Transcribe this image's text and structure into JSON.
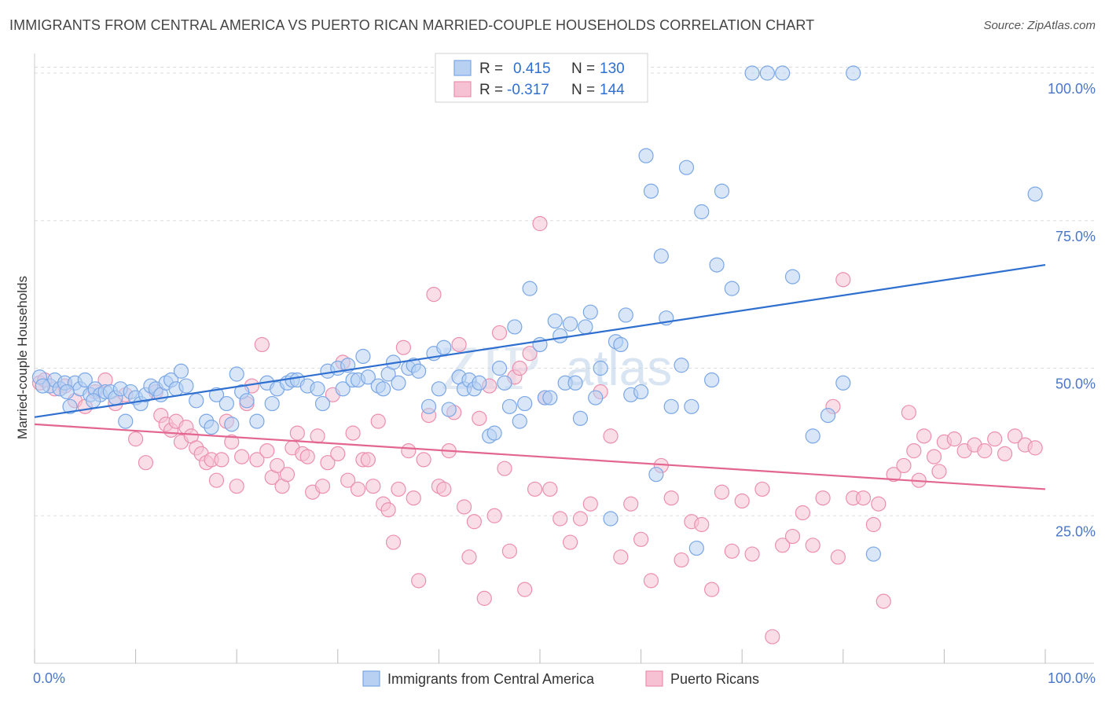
{
  "header": {
    "title": "IMMIGRANTS FROM CENTRAL AMERICA VS PUERTO RICAN MARRIED-COUPLE HOUSEHOLDS CORRELATION CHART",
    "source": "Source: ZipAtlas.com"
  },
  "watermark": {
    "zip": "ZIP",
    "atlas": "atlas"
  },
  "colors": {
    "blue_fill": "#b8d1f3",
    "blue_stroke": "#7aa7e6",
    "blue_line": "#2f6fd0",
    "pink_fill": "#f6c2d3",
    "pink_stroke": "#ec8fae",
    "pink_line": "#e2668f",
    "grid": "#dddddd",
    "tick_text": "#4a77c8"
  },
  "legend": {
    "rows": [
      {
        "r_label": "R =",
        "r_value": "0.415",
        "n_label": "N =",
        "n_value": "130"
      },
      {
        "r_label": "R =",
        "r_value": "-0.317",
        "n_label": "N =",
        "n_value": "144"
      }
    ]
  },
  "chart_data": {
    "type": "scatter",
    "title": "IMMIGRANTS FROM CENTRAL AMERICA VS PUERTO RICAN MARRIED-COUPLE HOUSEHOLDS CORRELATION CHART",
    "xlabel": "",
    "ylabel": "Married-couple Households",
    "xlim": [
      0,
      100
    ],
    "ylim": [
      0,
      102
    ],
    "x_tick_labels": [
      "0.0%",
      "100.0%"
    ],
    "y_ticks": [
      25,
      50,
      75,
      100
    ],
    "y_tick_labels": [
      "25.0%",
      "50.0%",
      "75.0%",
      "100.0%"
    ],
    "legend_position": "top-center",
    "series": [
      {
        "name": "Immigrants from Central America",
        "color": "#7aa7e6",
        "R": 0.415,
        "N": 130,
        "trend": {
          "x0": 0,
          "y0": 41.7,
          "x1": 100,
          "y1": 67.5
        },
        "points": [
          [
            0.5,
            48.5
          ],
          [
            1.5,
            47
          ],
          [
            2,
            48
          ],
          [
            2.5,
            46.5
          ],
          [
            3,
            47.5
          ],
          [
            3.5,
            43.5
          ],
          [
            4,
            47.5
          ],
          [
            4.5,
            46.5
          ],
          [
            5,
            48
          ],
          [
            5.5,
            45.5
          ],
          [
            6,
            46.5
          ],
          [
            6.5,
            45.5
          ],
          [
            7,
            46
          ],
          [
            7.5,
            46
          ],
          [
            8,
            45
          ],
          [
            8.5,
            46.5
          ],
          [
            9,
            41
          ],
          [
            9.5,
            46
          ],
          [
            10,
            45
          ],
          [
            10.5,
            44
          ],
          [
            11,
            45.5
          ],
          [
            11.5,
            47
          ],
          [
            12,
            46.5
          ],
          [
            12.5,
            45.5
          ],
          [
            13,
            47.5
          ],
          [
            13.5,
            48
          ],
          [
            14,
            46.5
          ],
          [
            14.5,
            49.5
          ],
          [
            15,
            47
          ],
          [
            16,
            44.5
          ],
          [
            17,
            41
          ],
          [
            17.5,
            40
          ],
          [
            18,
            45.5
          ],
          [
            19,
            44
          ],
          [
            19.5,
            40.5
          ],
          [
            20,
            49
          ],
          [
            20.5,
            46
          ],
          [
            21,
            44.5
          ],
          [
            22,
            41
          ],
          [
            23,
            47.5
          ],
          [
            23.5,
            44
          ],
          [
            24,
            46.5
          ],
          [
            25,
            47.5
          ],
          [
            25.5,
            48
          ],
          [
            26,
            48
          ],
          [
            27,
            47
          ],
          [
            28,
            46.5
          ],
          [
            28.5,
            44
          ],
          [
            29,
            49.5
          ],
          [
            30,
            50
          ],
          [
            30.5,
            46.5
          ],
          [
            31,
            50.5
          ],
          [
            31.5,
            48
          ],
          [
            32,
            48
          ],
          [
            32.5,
            52
          ],
          [
            33,
            48.5
          ],
          [
            34,
            47
          ],
          [
            34.5,
            46.5
          ],
          [
            35,
            49
          ],
          [
            35.5,
            51
          ],
          [
            36,
            47.5
          ],
          [
            37,
            50
          ],
          [
            37.5,
            50.5
          ],
          [
            38,
            49.5
          ],
          [
            39,
            43.5
          ],
          [
            39.5,
            52.5
          ],
          [
            40,
            46.5
          ],
          [
            40.5,
            53.5
          ],
          [
            41,
            43
          ],
          [
            42,
            48.5
          ],
          [
            42.5,
            46.5
          ],
          [
            43,
            48
          ],
          [
            43.5,
            46.5
          ],
          [
            44,
            47.5
          ],
          [
            45,
            38.5
          ],
          [
            45.5,
            39
          ],
          [
            46,
            50
          ],
          [
            46.5,
            47.5
          ],
          [
            47,
            43.5
          ],
          [
            47.5,
            57
          ],
          [
            48,
            41
          ],
          [
            48.5,
            44
          ],
          [
            49,
            63.5
          ],
          [
            50,
            54
          ],
          [
            50.5,
            45
          ],
          [
            51,
            45
          ],
          [
            51.5,
            58
          ],
          [
            52,
            55.5
          ],
          [
            52.5,
            47.5
          ],
          [
            53,
            57.5
          ],
          [
            53.5,
            47.5
          ],
          [
            54,
            41.5
          ],
          [
            54.5,
            57
          ],
          [
            55,
            59.5
          ],
          [
            55.5,
            45
          ],
          [
            56,
            50
          ],
          [
            57,
            24.5
          ],
          [
            57.5,
            54.5
          ],
          [
            58,
            54
          ],
          [
            58.5,
            59
          ],
          [
            59,
            45.5
          ],
          [
            60,
            46
          ],
          [
            60.5,
            86
          ],
          [
            61,
            80
          ],
          [
            61.5,
            32
          ],
          [
            62,
            69
          ],
          [
            62.5,
            58.5
          ],
          [
            63,
            43.5
          ],
          [
            64,
            50.5
          ],
          [
            64.5,
            84
          ],
          [
            65,
            43.5
          ],
          [
            65.5,
            19.5
          ],
          [
            66,
            76.5
          ],
          [
            67,
            48
          ],
          [
            67.5,
            67.5
          ],
          [
            68,
            80
          ],
          [
            69,
            63.5
          ],
          [
            71,
            100
          ],
          [
            72.5,
            100
          ],
          [
            74,
            100
          ],
          [
            75,
            65.5
          ],
          [
            77,
            38.5
          ],
          [
            78.5,
            42
          ],
          [
            80,
            47.5
          ],
          [
            81,
            100
          ],
          [
            83,
            18.5
          ],
          [
            99,
            79.5
          ],
          [
            0.8,
            47
          ],
          [
            3.2,
            46
          ],
          [
            5.8,
            44.5
          ]
        ]
      },
      {
        "name": "Puerto Ricans",
        "color": "#ec8fae",
        "R": -0.317,
        "N": 144,
        "trend": {
          "x0": 0,
          "y0": 40.5,
          "x1": 100,
          "y1": 29.5
        },
        "points": [
          [
            0.5,
            47.5
          ],
          [
            1,
            48
          ],
          [
            2,
            46.5
          ],
          [
            3,
            47
          ],
          [
            4,
            44.5
          ],
          [
            5,
            43.5
          ],
          [
            6,
            46
          ],
          [
            7,
            48
          ],
          [
            8,
            44
          ],
          [
            9,
            45.5
          ],
          [
            10,
            38
          ],
          [
            11,
            34
          ],
          [
            12,
            46
          ],
          [
            12.5,
            42
          ],
          [
            13,
            40.5
          ],
          [
            13.5,
            39.5
          ],
          [
            14,
            41
          ],
          [
            14.5,
            37.5
          ],
          [
            15,
            40
          ],
          [
            15.5,
            38.5
          ],
          [
            16,
            36.5
          ],
          [
            16.5,
            35.5
          ],
          [
            17,
            34
          ],
          [
            17.5,
            34.5
          ],
          [
            18,
            31
          ],
          [
            18.5,
            34.5
          ],
          [
            19,
            41
          ],
          [
            19.5,
            37.5
          ],
          [
            20,
            30
          ],
          [
            20.5,
            35
          ],
          [
            21,
            44
          ],
          [
            21.5,
            47
          ],
          [
            22,
            34.5
          ],
          [
            22.5,
            54
          ],
          [
            23,
            36
          ],
          [
            23.5,
            31.5
          ],
          [
            24,
            33.5
          ],
          [
            24.5,
            30
          ],
          [
            25,
            32
          ],
          [
            25.5,
            36.5
          ],
          [
            26,
            39
          ],
          [
            26.5,
            35.5
          ],
          [
            27,
            35
          ],
          [
            27.5,
            29
          ],
          [
            28,
            38.5
          ],
          [
            28.5,
            30
          ],
          [
            29,
            34
          ],
          [
            29.5,
            45.5
          ],
          [
            30,
            35.5
          ],
          [
            30.5,
            51
          ],
          [
            31,
            31
          ],
          [
            31.5,
            39
          ],
          [
            32,
            29.5
          ],
          [
            32.5,
            34.5
          ],
          [
            33,
            34.5
          ],
          [
            33.5,
            30
          ],
          [
            34,
            41
          ],
          [
            34.5,
            27
          ],
          [
            35,
            26
          ],
          [
            35.5,
            20.5
          ],
          [
            36,
            29.5
          ],
          [
            36.5,
            53.5
          ],
          [
            37,
            36
          ],
          [
            37.5,
            28
          ],
          [
            38,
            14
          ],
          [
            38.5,
            34.5
          ],
          [
            39,
            42
          ],
          [
            39.5,
            62.5
          ],
          [
            40,
            30
          ],
          [
            40.5,
            29.5
          ],
          [
            41,
            36
          ],
          [
            41.5,
            42.5
          ],
          [
            42,
            54
          ],
          [
            42.5,
            26.5
          ],
          [
            43,
            18
          ],
          [
            43.5,
            24
          ],
          [
            44,
            41.5
          ],
          [
            44.5,
            11
          ],
          [
            45,
            47
          ],
          [
            45.5,
            25
          ],
          [
            46,
            56
          ],
          [
            46.5,
            33
          ],
          [
            47,
            19
          ],
          [
            47.5,
            48.5
          ],
          [
            48,
            50
          ],
          [
            48.5,
            12.5
          ],
          [
            49,
            52.5
          ],
          [
            49.5,
            29.5
          ],
          [
            50,
            74.5
          ],
          [
            50.5,
            45
          ],
          [
            51,
            29.5
          ],
          [
            52,
            24.5
          ],
          [
            53,
            20.5
          ],
          [
            54,
            24.5
          ],
          [
            55,
            27
          ],
          [
            56,
            46
          ],
          [
            57,
            38.5
          ],
          [
            58,
            18
          ],
          [
            59,
            27
          ],
          [
            60,
            21
          ],
          [
            61,
            14
          ],
          [
            62,
            33.5
          ],
          [
            63,
            28
          ],
          [
            64,
            17.5
          ],
          [
            65,
            24
          ],
          [
            66,
            23.5
          ],
          [
            67,
            12.5
          ],
          [
            68,
            29
          ],
          [
            69,
            19
          ],
          [
            70,
            27.5
          ],
          [
            71,
            18.5
          ],
          [
            72,
            29.5
          ],
          [
            73,
            4.5
          ],
          [
            74,
            20
          ],
          [
            75,
            21.5
          ],
          [
            76,
            25.5
          ],
          [
            77,
            20
          ],
          [
            78,
            28
          ],
          [
            79,
            43.5
          ],
          [
            80,
            65
          ],
          [
            81,
            28
          ],
          [
            82,
            28
          ],
          [
            83,
            23.5
          ],
          [
            84,
            10.5
          ],
          [
            85,
            32
          ],
          [
            86,
            33.5
          ],
          [
            87,
            36
          ],
          [
            88,
            38.5
          ],
          [
            89,
            35
          ],
          [
            90,
            37.5
          ],
          [
            91,
            38
          ],
          [
            92,
            36
          ],
          [
            93,
            37
          ],
          [
            94,
            36
          ],
          [
            95,
            38
          ],
          [
            96,
            35.5
          ],
          [
            97,
            38.5
          ],
          [
            98,
            37
          ],
          [
            99,
            36.5
          ],
          [
            87.5,
            31
          ],
          [
            89.5,
            32.5
          ],
          [
            86.5,
            42.5
          ],
          [
            79.5,
            18
          ],
          [
            83.5,
            27
          ]
        ]
      }
    ]
  },
  "bottom_legend": {
    "items": [
      {
        "label": "Immigrants from Central America"
      },
      {
        "label": "Puerto Ricans"
      }
    ]
  }
}
